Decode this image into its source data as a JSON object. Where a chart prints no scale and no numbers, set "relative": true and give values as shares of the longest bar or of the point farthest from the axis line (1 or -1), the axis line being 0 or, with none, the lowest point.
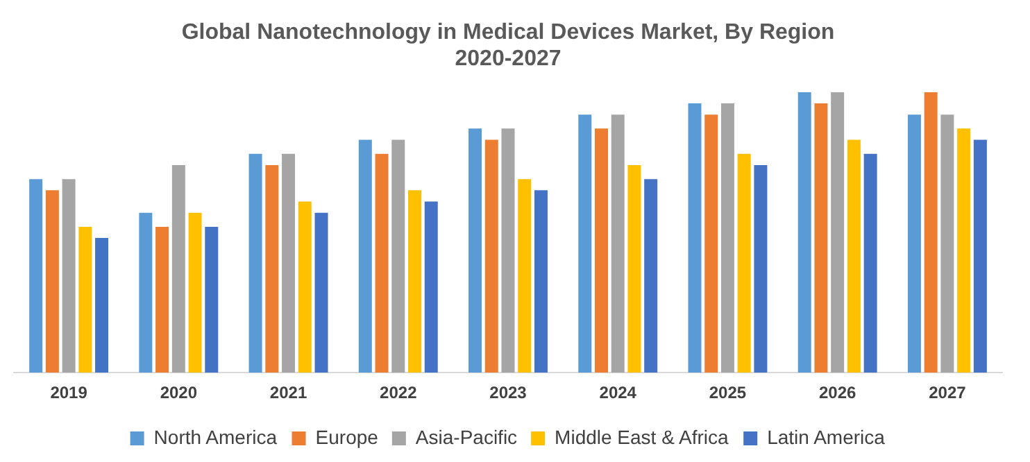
{
  "chart_data": {
    "type": "bar",
    "title": "Global Nanotechnology in Medical Devices Market, By Region\n2020-2027",
    "relative": true,
    "legend": "bottom",
    "grid": false,
    "categories": [
      "2019",
      "2020",
      "2021",
      "2022",
      "2023",
      "2024",
      "2025",
      "2026",
      "2027"
    ],
    "series": [
      {
        "name": "North America",
        "color": "#5b9bd5",
        "values": [
          0.69,
          0.57,
          0.78,
          0.83,
          0.87,
          0.92,
          0.96,
          1,
          0.92
        ]
      },
      {
        "name": "Europe",
        "color": "#ed7d31",
        "values": [
          0.65,
          0.52,
          0.74,
          0.78,
          0.83,
          0.87,
          0.92,
          0.96,
          1
        ]
      },
      {
        "name": "Asia-Pacific",
        "color": "#a5a5a5",
        "values": [
          0.69,
          0.74,
          0.78,
          0.83,
          0.87,
          0.92,
          0.96,
          1,
          0.92
        ]
      },
      {
        "name": "Middle East & Africa",
        "color": "#ffc000",
        "values": [
          0.52,
          0.57,
          0.61,
          0.65,
          0.69,
          0.74,
          0.78,
          0.83,
          0.87
        ]
      },
      {
        "name": "Latin America",
        "color": "#4472c4",
        "values": [
          0.48,
          0.52,
          0.57,
          0.61,
          0.65,
          0.69,
          0.74,
          0.78,
          0.83
        ]
      }
    ]
  }
}
